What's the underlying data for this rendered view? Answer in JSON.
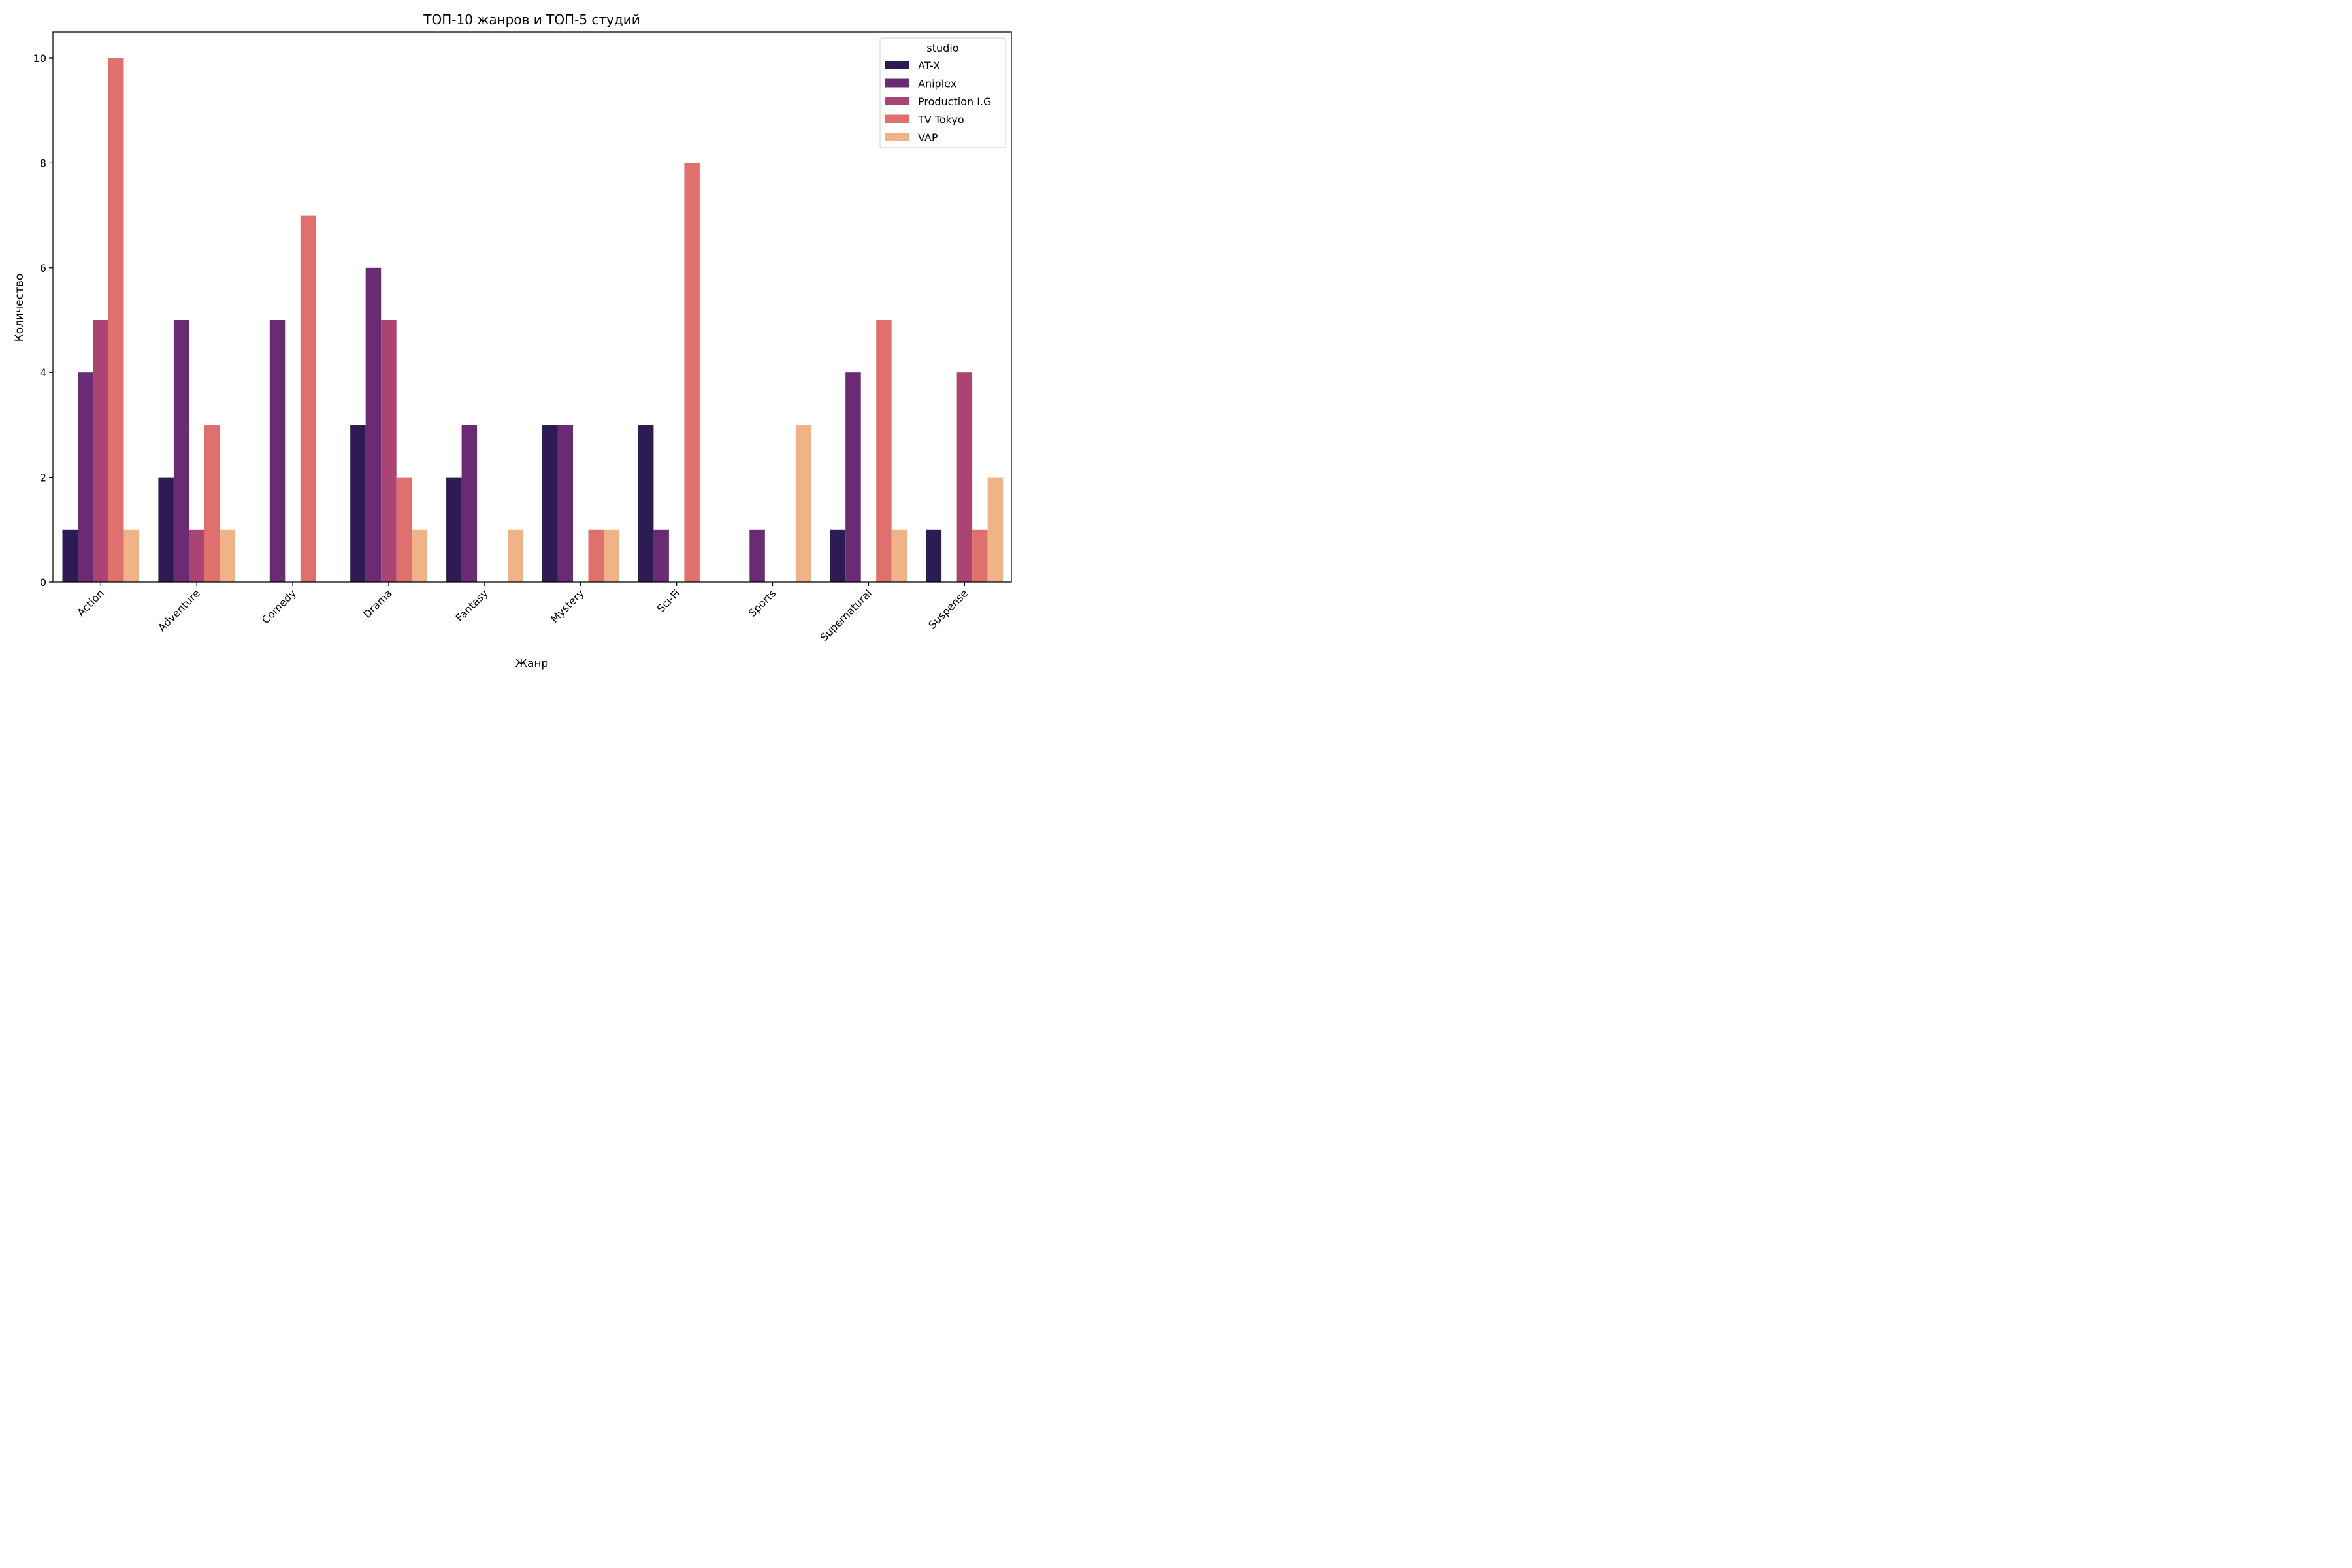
{
  "chart_data": {
    "type": "bar",
    "title": "ТОП-10 жанров и ТОП-5 студий",
    "xlabel": "Жанр",
    "ylabel": "Количество",
    "categories": [
      "Action",
      "Adventure",
      "Comedy",
      "Drama",
      "Fantasy",
      "Mystery",
      "Sci-Fi",
      "Sports",
      "Supernatural",
      "Suspense"
    ],
    "series": [
      {
        "name": "AT-X",
        "color": "#2d1b54",
        "values": [
          1,
          2,
          0,
          3,
          2,
          3,
          3,
          0,
          1,
          1
        ]
      },
      {
        "name": "Aniplex",
        "color": "#6b2b74",
        "values": [
          4,
          5,
          5,
          6,
          3,
          3,
          1,
          1,
          4,
          0
        ]
      },
      {
        "name": "Production I.G",
        "color": "#a94474",
        "values": [
          5,
          1,
          0,
          5,
          0,
          0,
          0,
          0,
          0,
          4
        ]
      },
      {
        "name": "TV Tokyo",
        "color": "#df706e",
        "values": [
          10,
          3,
          7,
          2,
          0,
          1,
          8,
          0,
          5,
          1
        ]
      },
      {
        "name": "VAP",
        "color": "#f0b286",
        "values": [
          1,
          1,
          0,
          1,
          1,
          1,
          0,
          3,
          1,
          2
        ]
      }
    ],
    "ylim": [
      0,
      10.5
    ],
    "yticks": [
      0,
      2,
      4,
      6,
      8,
      10
    ],
    "legend": {
      "title": "studio",
      "position": "top-right"
    },
    "grid": false
  }
}
